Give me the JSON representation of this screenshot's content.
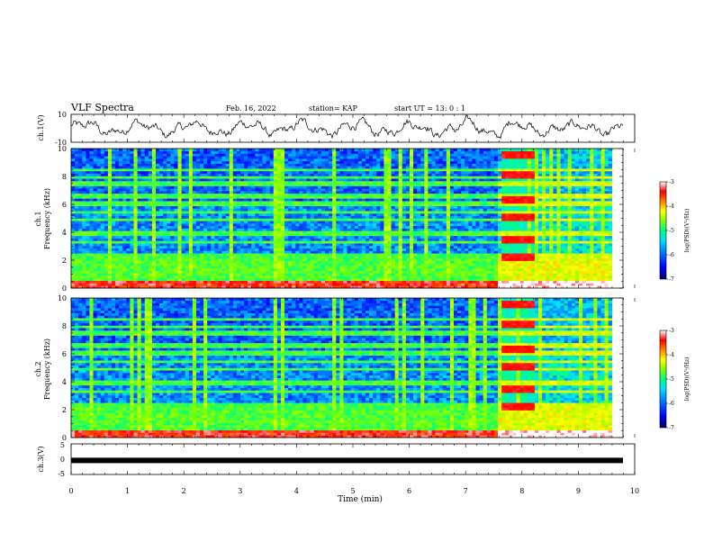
{
  "header": {
    "title": "VLF Spectra",
    "date": "Feb. 16, 2022",
    "station": "station= KAP",
    "start": "start UT = 13: 0 : 1"
  },
  "chart_data": [
    {
      "type": "line",
      "name": "ch1-waveform",
      "ylabel": "ch.1(V)",
      "xlim": [
        0,
        10
      ],
      "ylim": [
        -10,
        10
      ],
      "yticks": [
        "10",
        "-10"
      ]
    },
    {
      "type": "heatmap",
      "name": "ch1-spectrogram",
      "ylabel_line1": "ch.1",
      "ylabel_line2": "Frequency (kHz)",
      "xlim": [
        0,
        10
      ],
      "ylim": [
        0,
        10
      ],
      "yticks": [
        "0",
        "2",
        "4",
        "6",
        "8",
        "10"
      ],
      "colorbar": {
        "label": "log(PSD)(V²/Hz)",
        "min": -7,
        "max": -3,
        "ticks": [
          "-3",
          "-4",
          "-5",
          "-6",
          "-7"
        ]
      },
      "bright_interval_min": [
        7.8,
        8.4
      ]
    },
    {
      "type": "heatmap",
      "name": "ch2-spectrogram",
      "ylabel_line1": "ch.2",
      "ylabel_line2": "Frequency (kHz)",
      "xlim": [
        0,
        10
      ],
      "ylim": [
        0,
        10
      ],
      "yticks": [
        "0",
        "2",
        "4",
        "6",
        "8",
        "10"
      ],
      "colorbar": {
        "label": "log(PSD)(V²/Hz)",
        "min": -7,
        "max": -3,
        "ticks": [
          "-3",
          "-4",
          "-5",
          "-6",
          "-7"
        ]
      },
      "bright_interval_min": [
        7.8,
        8.4
      ]
    },
    {
      "type": "line",
      "name": "ch3-waveform",
      "ylabel": "ch.3(V)",
      "xlim": [
        0,
        10
      ],
      "ylim": [
        -5,
        5
      ],
      "yticks": [
        "5",
        "0",
        "-5"
      ],
      "level_v": -0.4
    }
  ],
  "xaxis": {
    "label": "Time (min)",
    "ticks": [
      "0",
      "1",
      "2",
      "3",
      "4",
      "5",
      "6",
      "7",
      "8",
      "9",
      "10"
    ]
  },
  "colors": {
    "axis": "#000000",
    "colormap": [
      "#000066",
      "#0000ff",
      "#0080ff",
      "#00e0ff",
      "#00ff80",
      "#80ff00",
      "#ffff00",
      "#ff8000",
      "#ff0000",
      "#ffffff"
    ]
  }
}
